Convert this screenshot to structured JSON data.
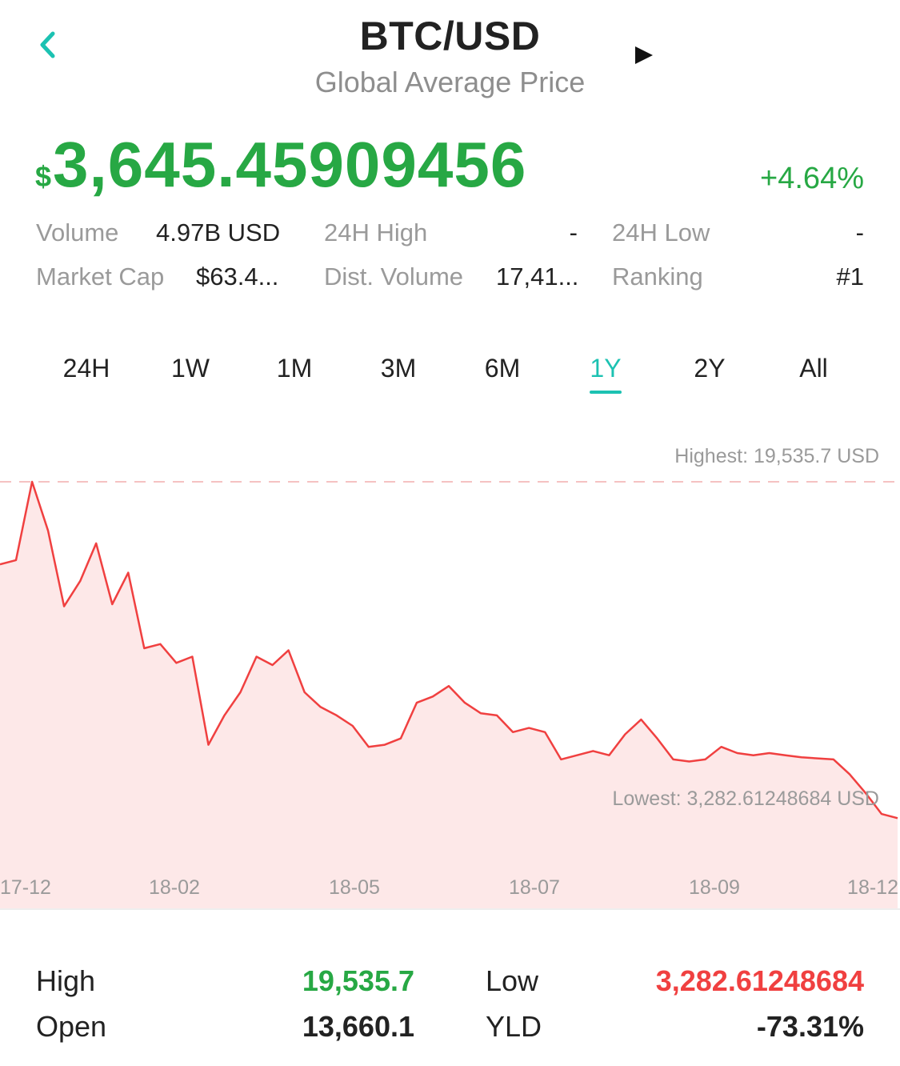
{
  "header": {
    "title": "BTC/USD",
    "subtitle": "Global Average Price",
    "accent": "#1cc2b2"
  },
  "price": {
    "currency_symbol": "$",
    "value": "3,645.45909456",
    "change": "+4.64%",
    "color": "#27a844"
  },
  "stats": {
    "volume": {
      "label": "Volume",
      "value": "4.97B USD"
    },
    "high_24h": {
      "label": "24H High",
      "value": "-"
    },
    "low_24h": {
      "label": "24H Low",
      "value": "-"
    },
    "market_cap": {
      "label": "Market Cap",
      "value": "$63.4..."
    },
    "dist_volume": {
      "label": "Dist. Volume",
      "value": "17,41..."
    },
    "ranking": {
      "label": "Ranking",
      "value": "#1"
    }
  },
  "tabs": [
    {
      "label": "24H"
    },
    {
      "label": "1W"
    },
    {
      "label": "1M"
    },
    {
      "label": "3M"
    },
    {
      "label": "6M"
    },
    {
      "label": "1Y"
    },
    {
      "label": "2Y"
    },
    {
      "label": "All"
    }
  ],
  "active_tab": "1Y",
  "chart_data": {
    "type": "area",
    "highest_label": "Highest: 19,535.7 USD",
    "lowest_label": "Lowest: 3,282.61248684 USD",
    "xtick_labels": [
      "17-12",
      "18-02",
      "18-05",
      "18-07",
      "18-09",
      "18-12"
    ],
    "ylim": [
      3282.61,
      19535.7
    ],
    "line_color": "#f04040",
    "fill_color": "#fde8e8",
    "series": [
      {
        "x": [
          "17-12",
          "17-12",
          "17-12",
          "17-12",
          "17-12",
          "17-12",
          "18-01",
          "18-01",
          "18-01",
          "18-01",
          "18-01",
          "18-01",
          "18-01",
          "18-02",
          "18-02",
          "18-02",
          "18-02",
          "18-02",
          "18-02",
          "18-03",
          "18-03",
          "18-03",
          "18-03",
          "18-03",
          "18-04",
          "18-04",
          "18-04",
          "18-04",
          "18-05",
          "18-05",
          "18-05",
          "18-05",
          "18-06",
          "18-06",
          "18-06",
          "18-06",
          "18-07",
          "18-07",
          "18-07",
          "18-07",
          "18-08",
          "18-08",
          "18-08",
          "18-08",
          "18-09",
          "18-09",
          "18-09",
          "18-09",
          "18-10",
          "18-10",
          "18-10",
          "18-10",
          "18-11",
          "18-11",
          "18-11",
          "18-11",
          "18-12"
        ],
        "values": [
          15600,
          15800,
          19535.7,
          17200,
          13600,
          14800,
          16600,
          13700,
          15200,
          11600,
          11800,
          10900,
          11200,
          7000,
          8400,
          9500,
          11200,
          10800,
          11500,
          9500,
          8800,
          8400,
          7900,
          6900,
          7000,
          7300,
          9000,
          9300,
          9800,
          9000,
          8500,
          8400,
          7600,
          7800,
          7600,
          6300,
          6500,
          6700,
          6500,
          7500,
          8200,
          7300,
          6300,
          6200,
          6300,
          6900,
          6600,
          6500,
          6600,
          6500,
          6400,
          6350,
          6300,
          5600,
          4700,
          3700,
          3500
        ]
      }
    ]
  },
  "summary": {
    "high": {
      "label": "High",
      "value": "19,535.7",
      "color": "#27a844"
    },
    "low": {
      "label": "Low",
      "value": "3,282.61248684",
      "color": "#f04040"
    },
    "open": {
      "label": "Open",
      "value": "13,660.1"
    },
    "yld": {
      "label": "YLD",
      "value": "-73.31%"
    }
  }
}
